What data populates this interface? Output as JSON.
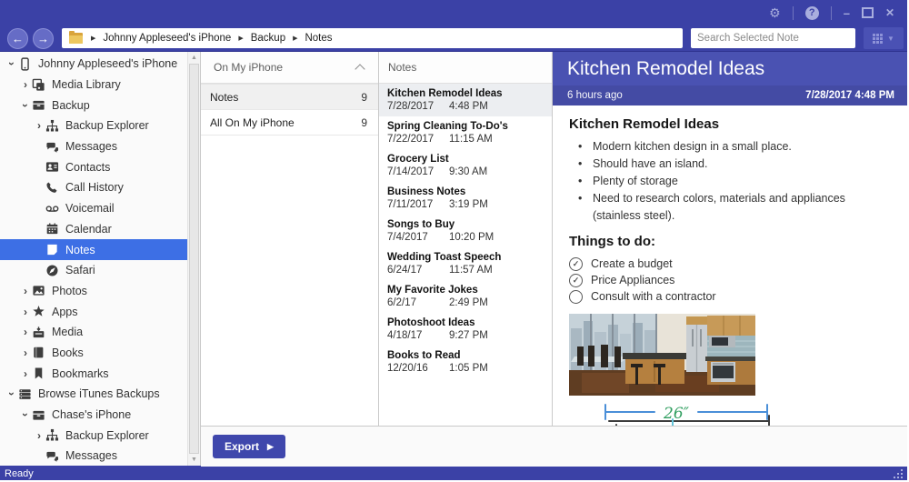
{
  "titlebar": {
    "controls": [
      "settings",
      "help",
      "minimize",
      "maximize",
      "close"
    ],
    "help_glyph": "?"
  },
  "toolbar": {
    "breadcrumb": [
      "Johnny Appleseed's iPhone",
      "Backup",
      "Notes"
    ],
    "search_placeholder": "Search Selected Note"
  },
  "sidebar": {
    "items": [
      {
        "label": "Johnny Appleseed's iPhone",
        "level": 0,
        "icon": "phone",
        "expand": "open"
      },
      {
        "label": "Media Library",
        "level": 1,
        "icon": "medialib",
        "expand": "closed"
      },
      {
        "label": "Backup",
        "level": 1,
        "icon": "backup",
        "expand": "open"
      },
      {
        "label": "Backup Explorer",
        "level": 2,
        "icon": "sitemap",
        "expand": "closed"
      },
      {
        "label": "Messages",
        "level": 2,
        "icon": "messages",
        "expand": "none"
      },
      {
        "label": "Contacts",
        "level": 2,
        "icon": "contacts",
        "expand": "none"
      },
      {
        "label": "Call History",
        "level": 2,
        "icon": "call",
        "expand": "none"
      },
      {
        "label": "Voicemail",
        "level": 2,
        "icon": "voicemail",
        "expand": "none"
      },
      {
        "label": "Calendar",
        "level": 2,
        "icon": "calendar",
        "expand": "none"
      },
      {
        "label": "Notes",
        "level": 2,
        "icon": "notes",
        "expand": "none",
        "selected": true
      },
      {
        "label": "Safari",
        "level": 2,
        "icon": "safari",
        "expand": "none"
      },
      {
        "label": "Photos",
        "level": 1,
        "icon": "photos",
        "expand": "closed"
      },
      {
        "label": "Apps",
        "level": 1,
        "icon": "apps",
        "expand": "closed"
      },
      {
        "label": "Media",
        "level": 1,
        "icon": "media",
        "expand": "closed"
      },
      {
        "label": "Books",
        "level": 1,
        "icon": "books",
        "expand": "closed"
      },
      {
        "label": "Bookmarks",
        "level": 1,
        "icon": "bookmarks",
        "expand": "closed"
      },
      {
        "label": "Browse iTunes Backups",
        "level": 0,
        "icon": "itunes",
        "expand": "open"
      },
      {
        "label": "Chase's iPhone",
        "level": 1,
        "icon": "backup",
        "expand": "open"
      },
      {
        "label": "Backup Explorer",
        "level": 2,
        "icon": "sitemap",
        "expand": "closed"
      },
      {
        "label": "Messages",
        "level": 2,
        "icon": "messages",
        "expand": "none"
      }
    ]
  },
  "folders_panel": {
    "header": "On My iPhone",
    "rows": [
      {
        "label": "Notes",
        "count": "9",
        "selected": true
      },
      {
        "label": "All On My iPhone",
        "count": "9",
        "selected": false
      }
    ]
  },
  "notes_panel": {
    "header": "Notes",
    "items": [
      {
        "title": "Kitchen Remodel Ideas",
        "date": "7/28/2017",
        "time": "4:48 PM",
        "selected": true
      },
      {
        "title": "Spring Cleaning To-Do's",
        "date": "7/22/2017",
        "time": "11:15 AM",
        "selected": false
      },
      {
        "title": "Grocery List",
        "date": "7/14/2017",
        "time": "9:30 AM",
        "selected": false
      },
      {
        "title": "Business Notes",
        "date": "7/11/2017",
        "time": "3:19 PM",
        "selected": false
      },
      {
        "title": "Songs to Buy",
        "date": "7/4/2017",
        "time": "10:20 PM",
        "selected": false
      },
      {
        "title": "Wedding Toast Speech",
        "date": "6/24/17",
        "time": "11:57 AM",
        "selected": false
      },
      {
        "title": "My Favorite Jokes",
        "date": "6/2/17",
        "time": "2:49 PM",
        "selected": false
      },
      {
        "title": "Photoshoot Ideas",
        "date": "4/18/17",
        "time": "9:27 PM",
        "selected": false
      },
      {
        "title": "Books to Read",
        "date": "12/20/16",
        "time": "1:05 PM",
        "selected": false
      }
    ]
  },
  "detail": {
    "title": "Kitchen Remodel Ideas",
    "relative_time": "6 hours ago",
    "timestamp": "7/28/2017 4:48 PM",
    "body_heading": "Kitchen Remodel Ideas",
    "bullets": [
      "Modern kitchen design in a small place.",
      "Should have an island.",
      "Plenty of storage",
      "Need to research colors, materials and appliances (stainless steel)."
    ],
    "todo_heading": "Things to do:",
    "todos": [
      {
        "label": "Create a budget",
        "checked": true
      },
      {
        "label": "Price Appliances",
        "checked": true
      },
      {
        "label": "Consult with a contractor",
        "checked": false
      }
    ],
    "sketch_dimension_label": "26″"
  },
  "footer": {
    "export_label": "Export"
  },
  "status_bar": {
    "text": "Ready"
  },
  "colors": {
    "titlebar": "#3B41A6",
    "detail_header": "#4A52B2",
    "sidebar_selection": "#3D6FE5",
    "accent_button": "#3F47AC",
    "sketch_blue": "#4A8FD8",
    "sketch_green": "#2F9E5F",
    "sketch_cyan": "#62C3D8",
    "sketch_yellow": "#E2B952",
    "sketch_red": "#C0483A"
  }
}
